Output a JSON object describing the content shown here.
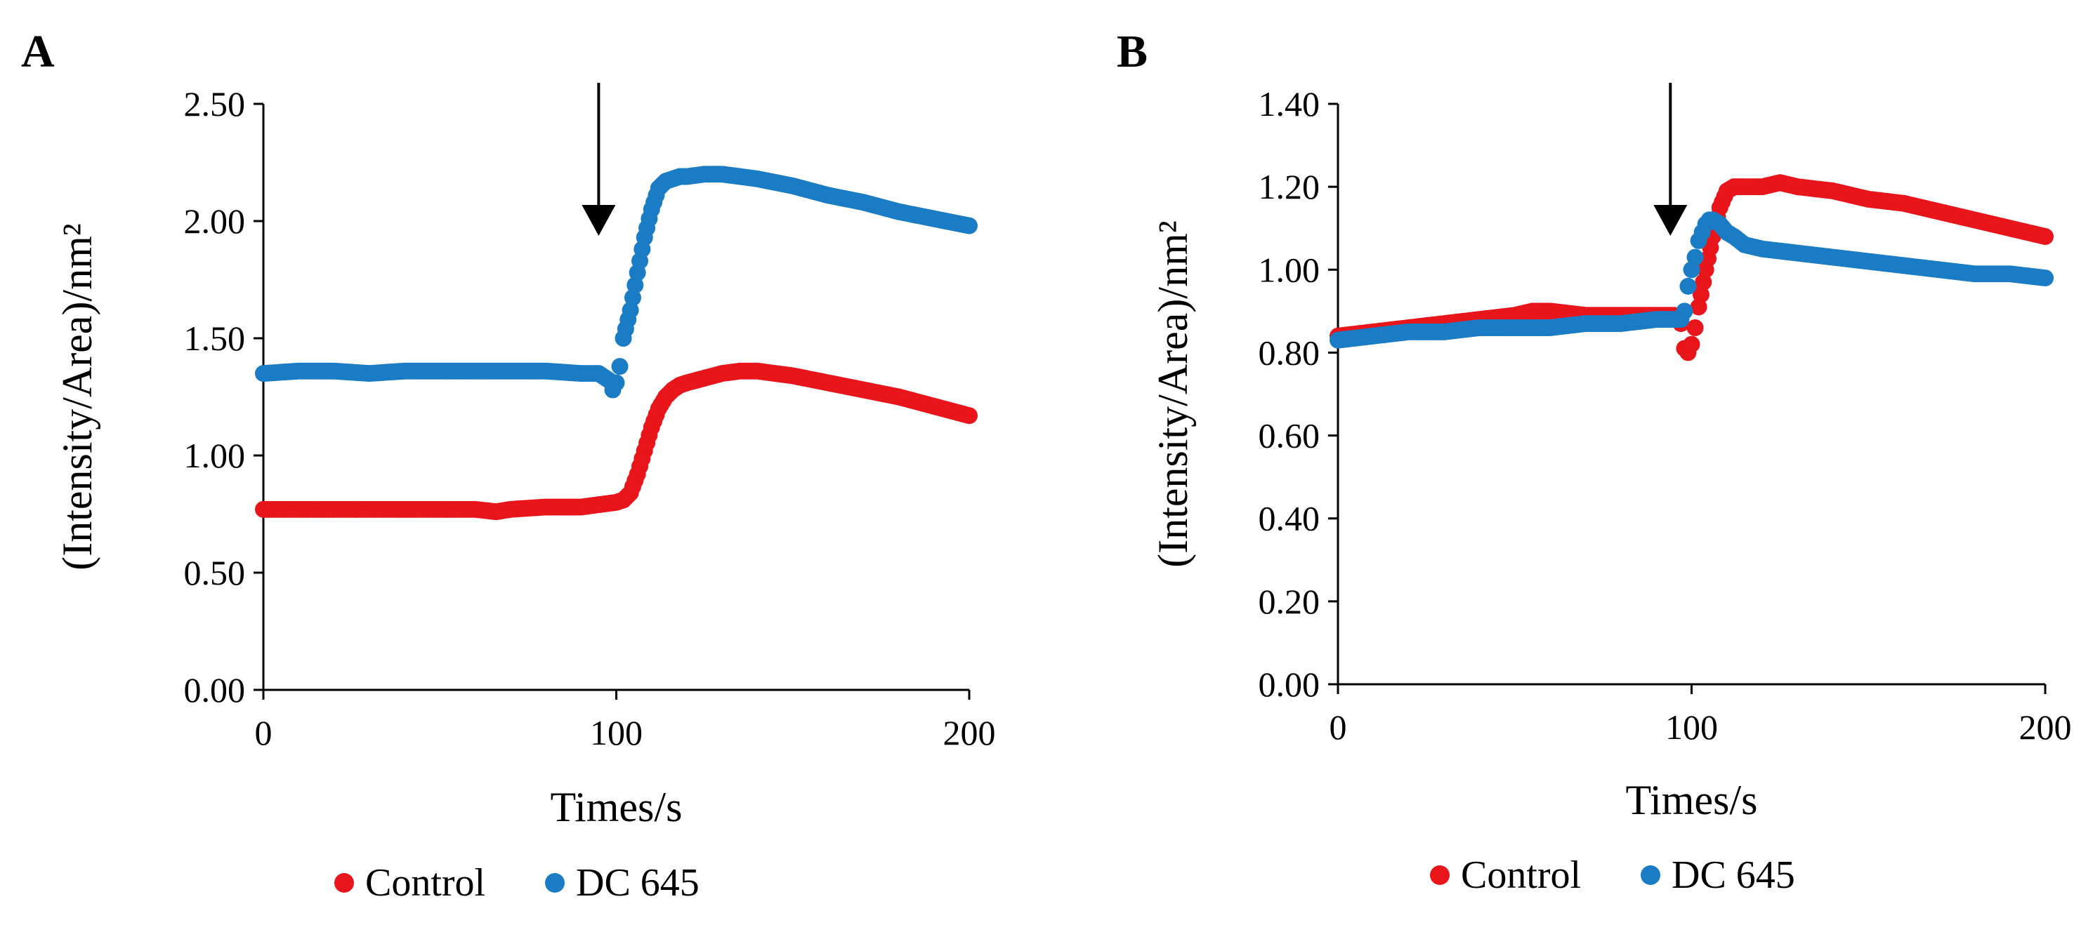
{
  "chart_data": [
    {
      "panel": "A",
      "type": "scatter",
      "title": "",
      "xlabel": "Times/s",
      "ylabel": "(Intensity/Area)/nm²",
      "xlim": [
        0,
        200
      ],
      "ylim": [
        0,
        2.5
      ],
      "xticks": [
        0,
        100,
        200
      ],
      "xtick_labels": [
        "0",
        "100",
        "200"
      ],
      "yticks": [
        0,
        0.5,
        1.0,
        1.5,
        2.0,
        2.5
      ],
      "ytick_labels": [
        "0.00",
        "0.50",
        "1.00",
        "1.50",
        "2.00",
        "2.50"
      ],
      "grid": false,
      "arrow_annotation_x": 95,
      "legend_placement": "bottom-center",
      "series": [
        {
          "name": "Control",
          "color": "#e8151b",
          "x": [
            0,
            10,
            20,
            30,
            40,
            50,
            60,
            66,
            70,
            80,
            90,
            95,
            100,
            102,
            104,
            106,
            108,
            110,
            112,
            114,
            116,
            118,
            120,
            125,
            130,
            135,
            140,
            150,
            160,
            170,
            180,
            190,
            200
          ],
          "y": [
            0.77,
            0.77,
            0.77,
            0.77,
            0.77,
            0.77,
            0.77,
            0.76,
            0.77,
            0.78,
            0.78,
            0.79,
            0.8,
            0.81,
            0.84,
            0.92,
            1.02,
            1.12,
            1.2,
            1.25,
            1.28,
            1.3,
            1.31,
            1.33,
            1.35,
            1.36,
            1.36,
            1.34,
            1.31,
            1.28,
            1.25,
            1.21,
            1.17
          ]
        },
        {
          "name": "DC 645",
          "color": "#1a7cc4",
          "x": [
            0,
            10,
            20,
            30,
            40,
            50,
            60,
            70,
            80,
            90,
            95,
            98,
            99,
            100,
            101,
            102,
            104,
            106,
            108,
            110,
            112,
            114,
            116,
            118,
            120,
            125,
            130,
            135,
            140,
            150,
            160,
            170,
            180,
            190,
            200
          ],
          "y": [
            1.35,
            1.36,
            1.36,
            1.35,
            1.36,
            1.36,
            1.36,
            1.36,
            1.36,
            1.35,
            1.35,
            1.32,
            1.28,
            1.31,
            1.38,
            1.5,
            1.62,
            1.78,
            1.93,
            2.05,
            2.14,
            2.17,
            2.18,
            2.19,
            2.19,
            2.2,
            2.2,
            2.19,
            2.18,
            2.15,
            2.11,
            2.08,
            2.04,
            2.01,
            1.98
          ]
        }
      ]
    },
    {
      "panel": "B",
      "type": "scatter",
      "title": "",
      "xlabel": "Times/s",
      "ylabel": "(Intensity/Area)/nm²",
      "xlim": [
        0,
        200
      ],
      "ylim": [
        0,
        1.4
      ],
      "xticks": [
        0,
        100,
        200
      ],
      "xtick_labels": [
        "0",
        "100",
        "200"
      ],
      "yticks": [
        0,
        0.2,
        0.4,
        0.6,
        0.8,
        1.0,
        1.2,
        1.4
      ],
      "ytick_labels": [
        "0.00",
        "0.20",
        "0.40",
        "0.60",
        "0.80",
        "1.00",
        "1.20",
        "1.40"
      ],
      "grid": false,
      "arrow_annotation_x": 94,
      "legend_placement": "bottom-center",
      "series": [
        {
          "name": "Control",
          "color": "#e8151b",
          "x": [
            0,
            10,
            20,
            30,
            40,
            50,
            55,
            60,
            70,
            80,
            90,
            95,
            97,
            98,
            99,
            100,
            101,
            102,
            104,
            106,
            108,
            110,
            112,
            115,
            120,
            125,
            130,
            140,
            150,
            160,
            170,
            180,
            190,
            200
          ],
          "y": [
            0.84,
            0.85,
            0.86,
            0.87,
            0.88,
            0.89,
            0.9,
            0.9,
            0.89,
            0.89,
            0.89,
            0.89,
            0.87,
            0.81,
            0.8,
            0.82,
            0.86,
            0.91,
            1.0,
            1.08,
            1.15,
            1.19,
            1.2,
            1.2,
            1.2,
            1.21,
            1.2,
            1.19,
            1.17,
            1.16,
            1.14,
            1.12,
            1.1,
            1.08
          ]
        },
        {
          "name": "DC 645",
          "color": "#1a7cc4",
          "x": [
            0,
            10,
            20,
            30,
            40,
            50,
            60,
            70,
            80,
            90,
            95,
            97,
            98,
            99,
            100,
            101,
            102,
            103,
            104,
            105,
            106,
            108,
            110,
            112,
            115,
            120,
            130,
            140,
            150,
            160,
            170,
            180,
            190,
            200
          ],
          "y": [
            0.83,
            0.84,
            0.85,
            0.85,
            0.86,
            0.86,
            0.86,
            0.87,
            0.87,
            0.88,
            0.88,
            0.88,
            0.9,
            0.96,
            1.0,
            1.03,
            1.07,
            1.09,
            1.11,
            1.12,
            1.12,
            1.11,
            1.09,
            1.08,
            1.06,
            1.05,
            1.04,
            1.03,
            1.02,
            1.01,
            1.0,
            0.99,
            0.99,
            0.98
          ]
        }
      ]
    }
  ]
}
